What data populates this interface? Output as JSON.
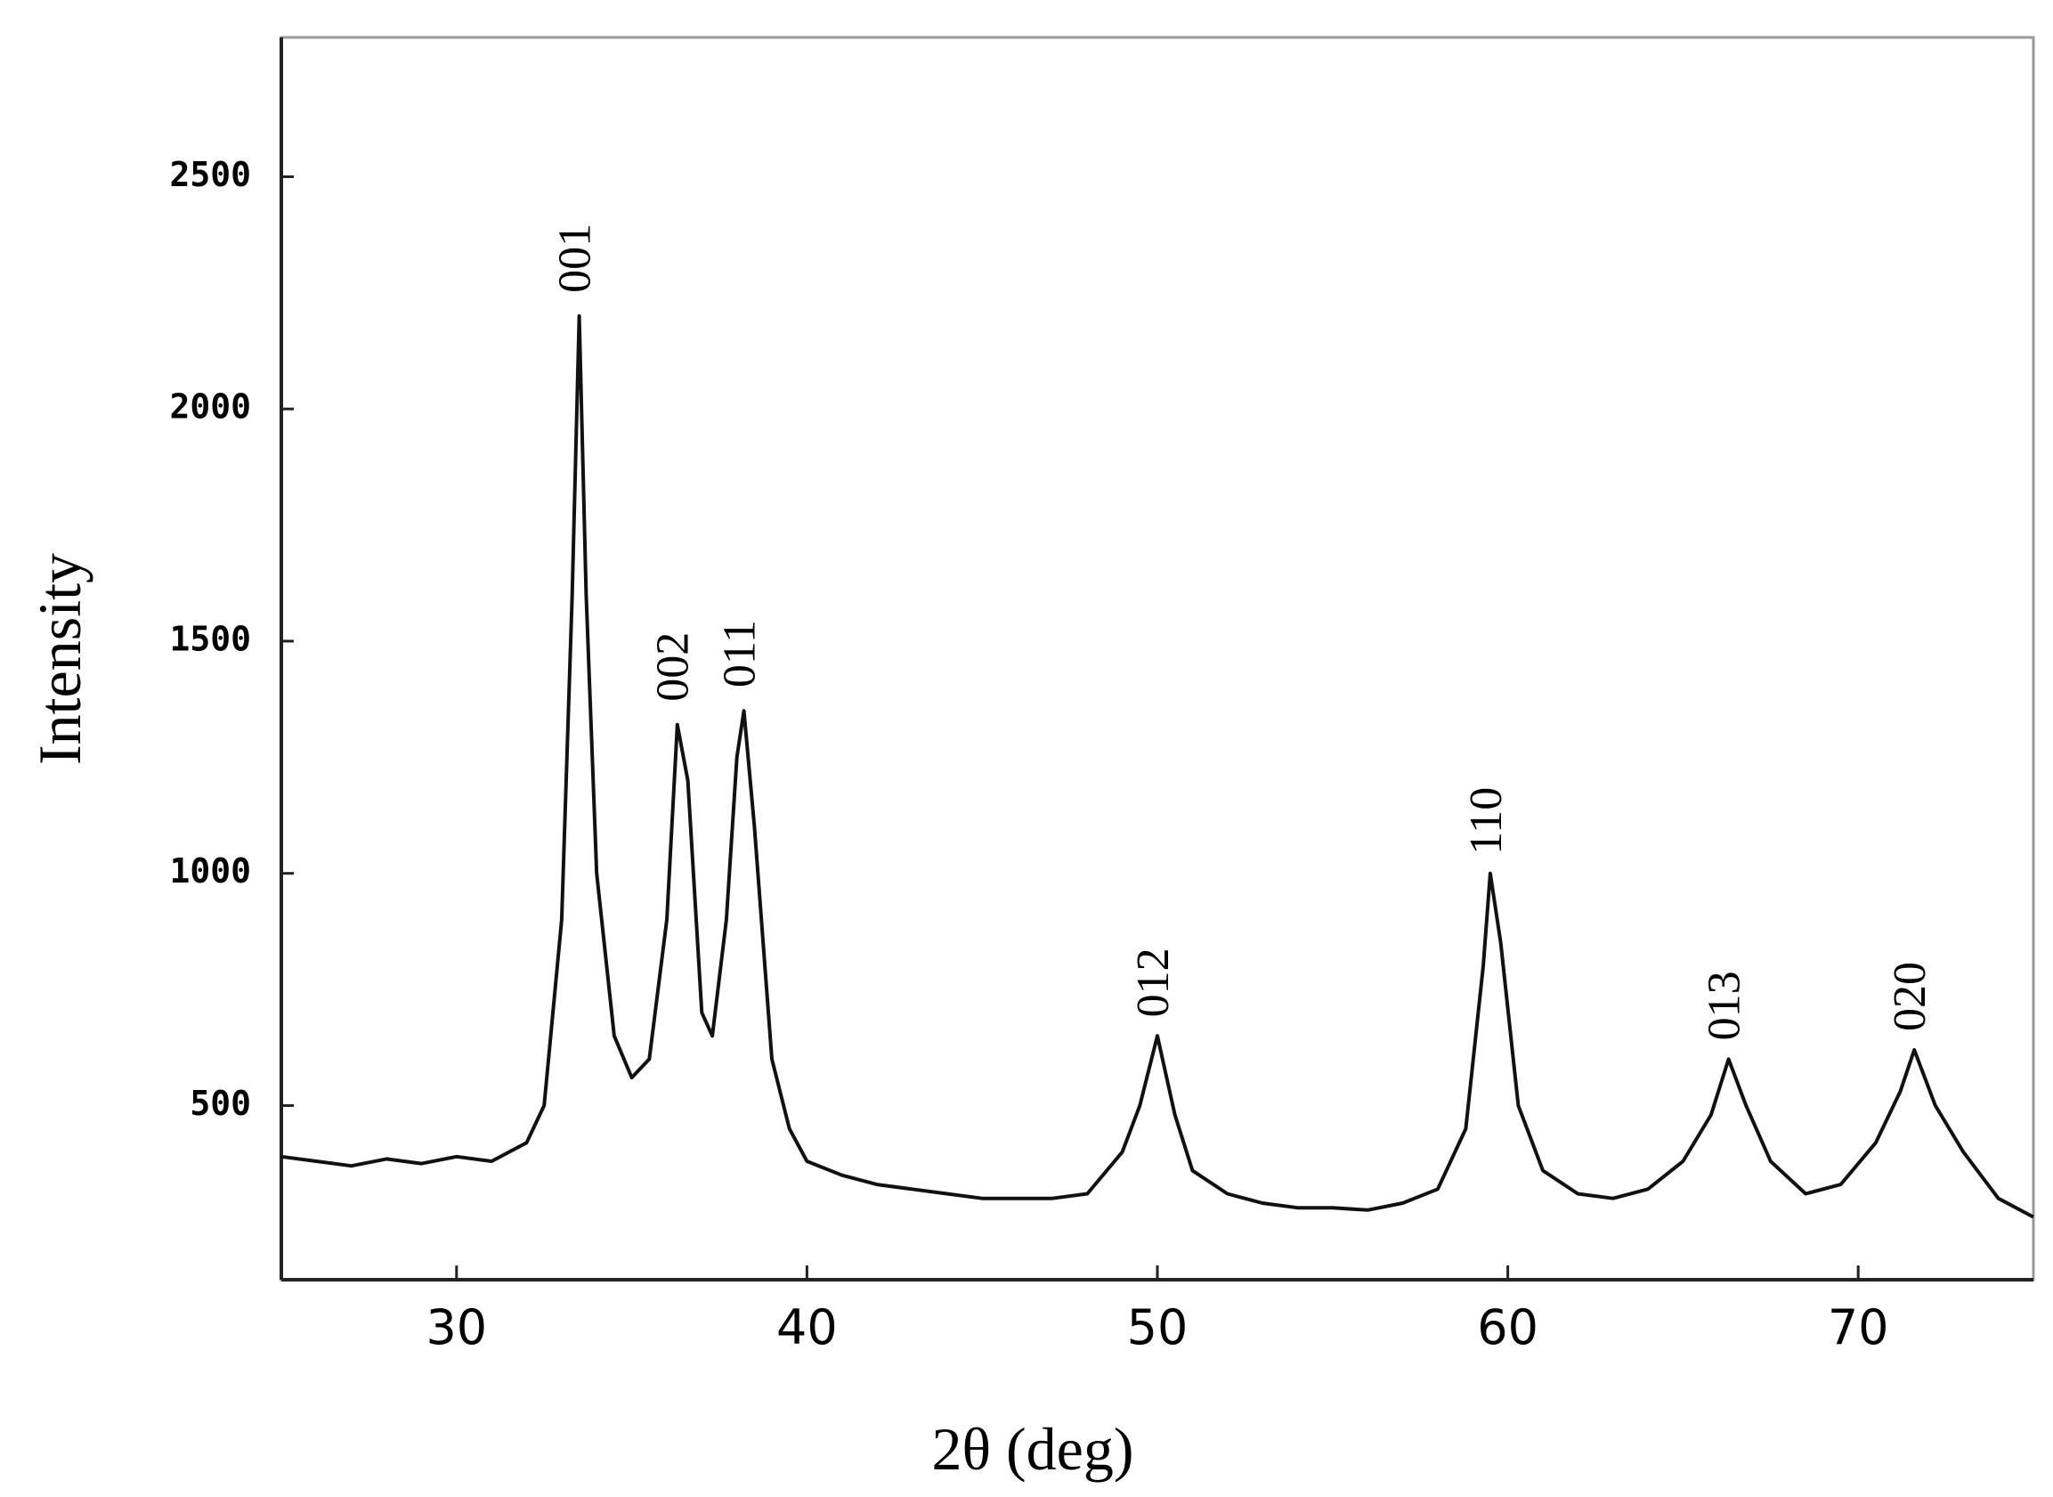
{
  "chart_data": {
    "type": "line",
    "xlabel": "2θ (deg)",
    "ylabel": "Intensity",
    "xlim": [
      25,
      75
    ],
    "xticks": [
      30,
      40,
      50,
      60,
      70
    ],
    "ylim": [
      125,
      2800
    ],
    "yticks": [
      500,
      1000,
      1500,
      2000,
      2500
    ],
    "grid": false,
    "series": [
      {
        "color": "#111111",
        "x": [
          25,
          26,
          27,
          28,
          29,
          30,
          31,
          32,
          32.5,
          33,
          33.3,
          33.5,
          33.7,
          34,
          34.5,
          35,
          35.5,
          36,
          36.3,
          36.6,
          37,
          37.3,
          37.7,
          38,
          38.2,
          38.5,
          39,
          39.5,
          40,
          41,
          42,
          43,
          44,
          45,
          46,
          47,
          48,
          49,
          49.5,
          50,
          50.5,
          51,
          52,
          53,
          54,
          55,
          56,
          57,
          58,
          58.8,
          59.3,
          59.5,
          59.8,
          60.3,
          61,
          62,
          63,
          64,
          65,
          65.8,
          66.3,
          66.8,
          67.5,
          68.5,
          69.5,
          70.5,
          71.2,
          71.6,
          72.2,
          73,
          74,
          75
        ],
        "values": [
          390,
          380,
          370,
          385,
          375,
          390,
          380,
          420,
          500,
          900,
          1600,
          2200,
          1600,
          1000,
          650,
          560,
          600,
          900,
          1320,
          1200,
          700,
          650,
          900,
          1250,
          1350,
          1100,
          600,
          450,
          380,
          350,
          330,
          320,
          310,
          300,
          300,
          300,
          310,
          400,
          500,
          650,
          480,
          360,
          310,
          290,
          280,
          280,
          275,
          290,
          320,
          450,
          800,
          1000,
          850,
          500,
          360,
          310,
          300,
          320,
          380,
          480,
          600,
          500,
          380,
          310,
          330,
          420,
          530,
          620,
          500,
          400,
          300,
          260
        ]
      }
    ],
    "annotations": [
      {
        "text": "001",
        "x": 33.5,
        "y": 2250
      },
      {
        "text": "002",
        "x": 36.3,
        "y": 1370
      },
      {
        "text": "011",
        "x": 38.2,
        "y": 1400
      },
      {
        "text": "012",
        "x": 50,
        "y": 690
      },
      {
        "text": "110",
        "x": 59.5,
        "y": 1040
      },
      {
        "text": "013",
        "x": 66.3,
        "y": 640
      },
      {
        "text": "020",
        "x": 71.6,
        "y": 660
      }
    ]
  }
}
